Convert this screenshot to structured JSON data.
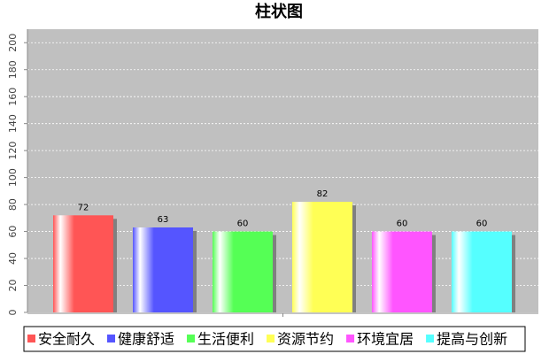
{
  "chart_data": {
    "type": "bar",
    "title": "柱状图",
    "categories": [
      null
    ],
    "series": [
      {
        "name": "安全耐久",
        "color": "#ff5555",
        "values": [
          72
        ]
      },
      {
        "name": "健康舒适",
        "color": "#5555ff",
        "values": [
          63
        ]
      },
      {
        "name": "生活便利",
        "color": "#55ff55",
        "values": [
          60
        ]
      },
      {
        "name": "资源节约",
        "color": "#ffff55",
        "values": [
          82
        ]
      },
      {
        "name": "环境宜居",
        "color": "#ff55ff",
        "values": [
          60
        ]
      },
      {
        "name": "提高与创新",
        "color": "#55ffff",
        "values": [
          60
        ]
      }
    ],
    "ylim": [
      0,
      210
    ],
    "yticks": [
      0,
      20,
      40,
      60,
      80,
      100,
      120,
      140,
      160,
      180,
      200
    ],
    "grid": true
  }
}
